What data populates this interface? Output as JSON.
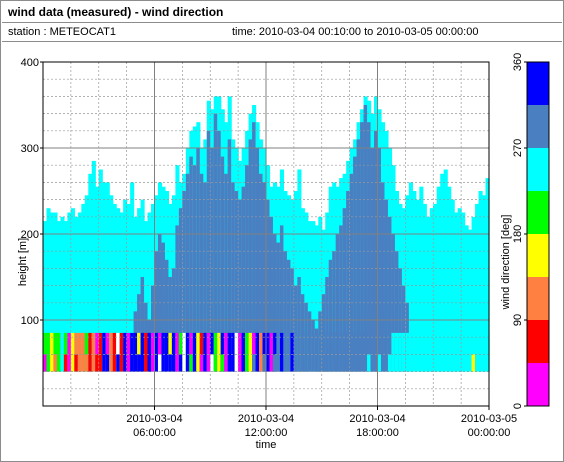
{
  "header": {
    "title": "wind data (measured) - wind direction"
  },
  "info": {
    "station": "station : METEOCAT1",
    "time_range": "time: 2010-03-04 00:10:00 to 2010-03-05 00:00:00"
  },
  "chart_data": {
    "type": "heatmap",
    "xlabel": "time",
    "ylabel": "height [m]",
    "ylim": [
      0,
      400
    ],
    "x_ticks": [
      {
        "line1": "2010-03-04",
        "line2": "06:00:00"
      },
      {
        "line1": "2010-03-04",
        "line2": "12:00:00"
      },
      {
        "line1": "2010-03-04",
        "line2": "18:00:00"
      },
      {
        "line1": "2010-03-05",
        "line2": "00:00:00"
      }
    ],
    "y_ticks": [
      100,
      200,
      300,
      400
    ],
    "grid": true,
    "colorbar": {
      "label": "wind direction [deg]",
      "ticks": [
        0,
        90,
        180,
        270,
        360
      ],
      "bands": [
        {
          "from": 0,
          "to": 45,
          "color": "#ff00ff"
        },
        {
          "from": 45,
          "to": 90,
          "color": "#ff0000"
        },
        {
          "from": 90,
          "to": 135,
          "color": "#ff8040"
        },
        {
          "from": 135,
          "to": 180,
          "color": "#ffff00"
        },
        {
          "from": 180,
          "to": 225,
          "color": "#00ff00"
        },
        {
          "from": 225,
          "to": 270,
          "color": "#00ffff"
        },
        {
          "from": 270,
          "to": 315,
          "color": "#4a7fc1"
        },
        {
          "from": 315,
          "to": 360,
          "color": "#0000ff"
        }
      ]
    },
    "description_note": "",
    "profile_top_m": [
      215,
      230,
      225,
      225,
      215,
      220,
      215,
      225,
      230,
      220,
      225,
      235,
      245,
      270,
      285,
      255,
      275,
      260,
      260,
      245,
      235,
      230,
      225,
      240,
      235,
      260,
      220,
      230,
      240,
      215,
      225,
      235,
      245,
      260,
      255,
      250,
      235,
      245,
      280,
      260,
      270,
      300,
      320,
      325,
      330,
      300,
      310,
      355,
      345,
      360,
      360,
      345,
      330,
      360,
      310,
      300,
      285,
      300,
      320,
      340,
      350,
      330,
      310,
      300,
      280,
      255,
      260,
      255,
      275,
      250,
      245,
      240,
      250,
      275,
      230,
      225,
      215,
      215,
      210,
      220,
      205,
      225,
      255,
      260,
      255,
      265,
      270,
      285,
      300,
      310,
      330,
      345,
      360,
      355,
      340,
      360,
      345,
      330,
      320,
      300,
      280,
      250,
      235,
      230,
      245,
      260,
      250,
      240,
      255,
      235,
      220,
      230,
      235,
      255,
      270,
      275,
      255,
      240,
      225,
      230,
      225,
      210,
      205,
      220,
      235,
      250,
      245,
      265
    ],
    "dark_top_m": [
      0,
      0,
      0,
      0,
      0,
      0,
      0,
      0,
      0,
      0,
      0,
      0,
      0,
      0,
      0,
      0,
      0,
      0,
      0,
      0,
      0,
      0,
      0,
      70,
      60,
      80,
      110,
      130,
      150,
      120,
      100,
      140,
      180,
      200,
      190,
      170,
      150,
      160,
      210,
      230,
      250,
      270,
      290,
      280,
      300,
      270,
      260,
      320,
      300,
      340,
      320,
      290,
      270,
      310,
      260,
      250,
      240,
      255,
      280,
      310,
      330,
      300,
      270,
      260,
      240,
      220,
      200,
      190,
      210,
      180,
      170,
      160,
      140,
      150,
      130,
      120,
      110,
      100,
      90,
      110,
      130,
      150,
      170,
      180,
      200,
      210,
      230,
      250,
      270,
      290,
      310,
      330,
      350,
      330,
      300,
      320,
      300,
      260,
      240,
      220,
      200,
      180,
      160,
      140,
      120,
      0,
      0,
      0,
      0,
      0,
      0,
      0,
      0,
      0,
      0,
      0,
      0,
      0,
      0,
      0,
      0,
      0,
      0,
      0,
      0,
      0,
      0,
      0
    ],
    "low_colors": [
      "#00ff00",
      "#00ff00",
      "#ffff00",
      "#00ff00",
      "#00ff00",
      "#00ffff",
      "#00ff00",
      "#ff00ff",
      "#ffff00",
      "#ff8040",
      "#ff8040",
      "#ff8040",
      "#00ff00",
      "#ff0000",
      "#ff8040",
      "#ff00ff",
      "#ff0000",
      "#0000ff",
      "#ff00ff",
      "#ff8040",
      "#ff0000",
      "#ffffff",
      "#ff0000",
      "#0000ff",
      "#ff00ff",
      "#0000ff",
      "#0000ff",
      "#ffff00",
      "#0000ff",
      "#ff0000",
      "#0000ff",
      "#ff00ff",
      "#0000ff",
      "#ff00ff",
      "#0000ff",
      "#0000ff",
      "#ffff00",
      "#0000ff",
      "#ff00ff",
      "#00ff00",
      "#ffffff",
      "#0000ff",
      "#ff00ff",
      "#0000ff",
      "#ffff00",
      "#ff0000",
      "#0000ff",
      "#ff00ff",
      "#0000ff",
      "#00ff00",
      "#ffff00",
      "#0000ff",
      "#ff00ff",
      "#0000ff",
      "#0000ff",
      "#ffffff",
      "#ff00ff",
      "#0000ff",
      "#00ff00",
      "#ffff00",
      "#ff00ff",
      "#0000ff",
      "#ff8040",
      "#0000ff",
      "#0000ff",
      "#ff00ff",
      "#0000ff",
      "#4a7fc1",
      "#0000ff",
      "#4a7fc1",
      "#4a7fc1",
      "#0000ff",
      "#4a7fc1",
      "#4a7fc1",
      "#4a7fc1",
      "#4a7fc1",
      "#4a7fc1",
      "#4a7fc1",
      "#4a7fc1",
      "#4a7fc1",
      "#4a7fc1",
      "#4a7fc1",
      "#4a7fc1",
      "#4a7fc1",
      "#4a7fc1",
      "#4a7fc1",
      "#4a7fc1",
      "#4a7fc1",
      "#4a7fc1",
      "#4a7fc1",
      "#4a7fc1",
      "#4a7fc1",
      "#4a7fc1",
      "#4a7fc1",
      "#4a7fc1",
      "#4a7fc1",
      "#4a7fc1",
      "#4a7fc1",
      "#4a7fc1",
      "#4a7fc1",
      "#00ffff",
      "#00ffff",
      "#00ffff",
      "#00ffff",
      "#00ffff",
      "#00ffff",
      "#00ffff",
      "#00ffff",
      "#00ffff",
      "#00ffff",
      "#00ffff",
      "#00ffff",
      "#00ffff",
      "#00ffff",
      "#00ffff",
      "#00ffff",
      "#00ffff",
      "#00ffff",
      "#00ffff",
      "#00ffff",
      "#00ffff",
      "#00ffff",
      "#00ffff",
      "#00ffff",
      "#00ffff",
      "#00ffff",
      "#00ffff",
      "#00ffff"
    ]
  }
}
